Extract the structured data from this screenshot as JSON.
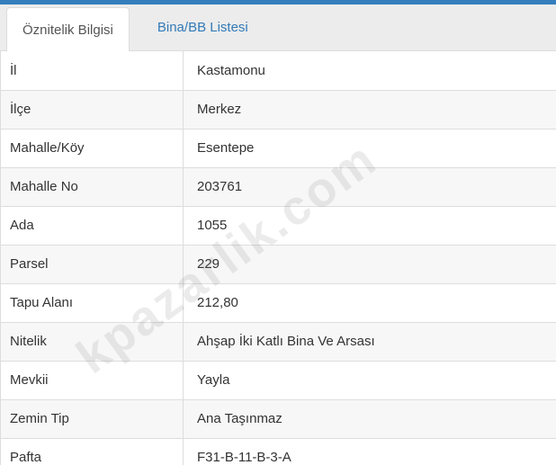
{
  "tabs": [
    {
      "label": "Öznitelik Bilgisi",
      "active": true
    },
    {
      "label": "Bina/BB Listesi",
      "active": false
    }
  ],
  "table": {
    "rows": [
      {
        "label": "İl",
        "value": "Kastamonu"
      },
      {
        "label": "İlçe",
        "value": "Merkez"
      },
      {
        "label": "Mahalle/Köy",
        "value": "Esentepe"
      },
      {
        "label": "Mahalle No",
        "value": "203761"
      },
      {
        "label": "Ada",
        "value": "1055"
      },
      {
        "label": "Parsel",
        "value": "229"
      },
      {
        "label": "Tapu Alanı",
        "value": "212,80"
      },
      {
        "label": "Nitelik",
        "value": "Ahşap İki Katlı Bina Ve Arsası"
      },
      {
        "label": "Mevkii",
        "value": "Yayla"
      },
      {
        "label": "Zemin Tip",
        "value": "Ana Taşınmaz"
      },
      {
        "label": "Pafta",
        "value": "F31-B-11-B-3-A"
      }
    ]
  },
  "watermark": {
    "text": "kpazarlik.com"
  },
  "colors": {
    "top_bar": "#357ebd",
    "tab_link": "#337ab7",
    "strip_bg": "#ececec",
    "border": "#dddddd",
    "stripe": "#f7f7f7",
    "text": "#333333"
  }
}
